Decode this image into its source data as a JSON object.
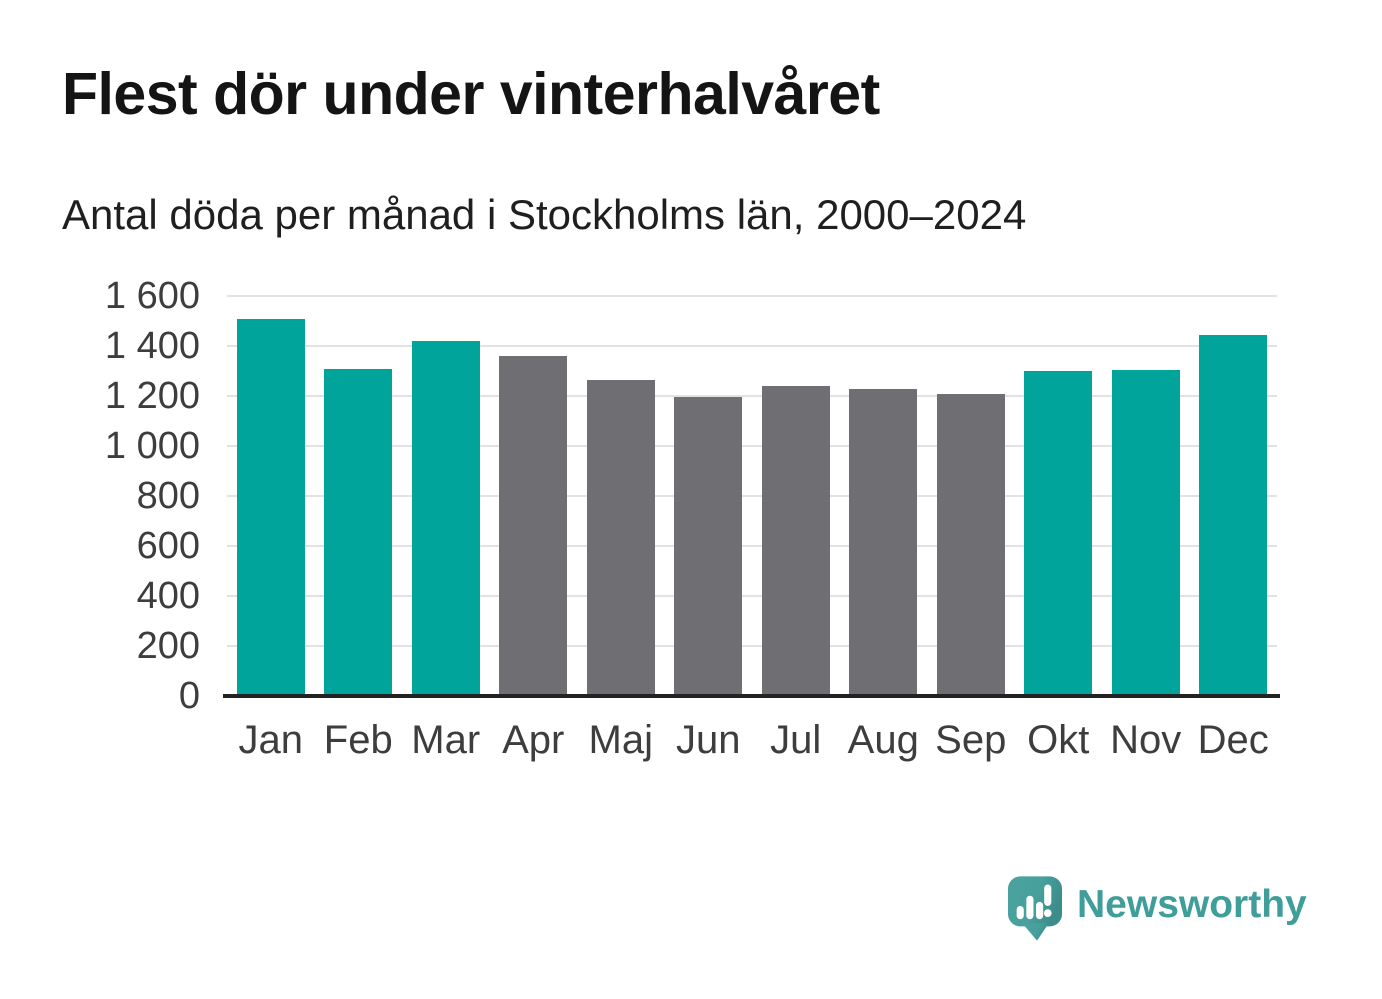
{
  "header": {
    "title": "Flest dör under vinterhalvåret",
    "subtitle": "Antal döda per månad i Stockholms län, 2000–2024"
  },
  "chart_data": {
    "type": "bar",
    "title": "Antal döda per månad i Stockholms län, 2000–2024",
    "xlabel": "",
    "ylabel": "",
    "categories": [
      "Jan",
      "Feb",
      "Mar",
      "Apr",
      "Maj",
      "Jun",
      "Jul",
      "Aug",
      "Sep",
      "Okt",
      "Nov",
      "Dec"
    ],
    "values": [
      1510,
      1310,
      1420,
      1360,
      1265,
      1195,
      1240,
      1230,
      1210,
      1300,
      1305,
      1445
    ],
    "bar_colors": [
      "#00a49a",
      "#00a49a",
      "#00a49a",
      "#6e6e73",
      "#6e6e73",
      "#6e6e73",
      "#6e6e73",
      "#6e6e73",
      "#6e6e73",
      "#00a49a",
      "#00a49a",
      "#00a49a"
    ],
    "highlight_color": "#00a49a",
    "muted_color": "#6e6e73",
    "gridline_color": "#e2e2e2",
    "axis_line_color": "#232323",
    "ylim": [
      0,
      1600
    ],
    "yticks": [
      {
        "value": 0,
        "label": "0"
      },
      {
        "value": 200,
        "label": "200"
      },
      {
        "value": 400,
        "label": "400"
      },
      {
        "value": 600,
        "label": "600"
      },
      {
        "value": 800,
        "label": "800"
      },
      {
        "value": 1000,
        "label": "1 000"
      },
      {
        "value": 1200,
        "label": "1 200"
      },
      {
        "value": 1400,
        "label": "1 400"
      },
      {
        "value": 1600,
        "label": "1 600"
      }
    ],
    "grid": true,
    "legend_position": "none"
  },
  "footer": {
    "brand": "Newsworthy",
    "logo_icon": "newsworthy-speech-bubble-chart-icon",
    "brand_color": "#3f9e99"
  }
}
